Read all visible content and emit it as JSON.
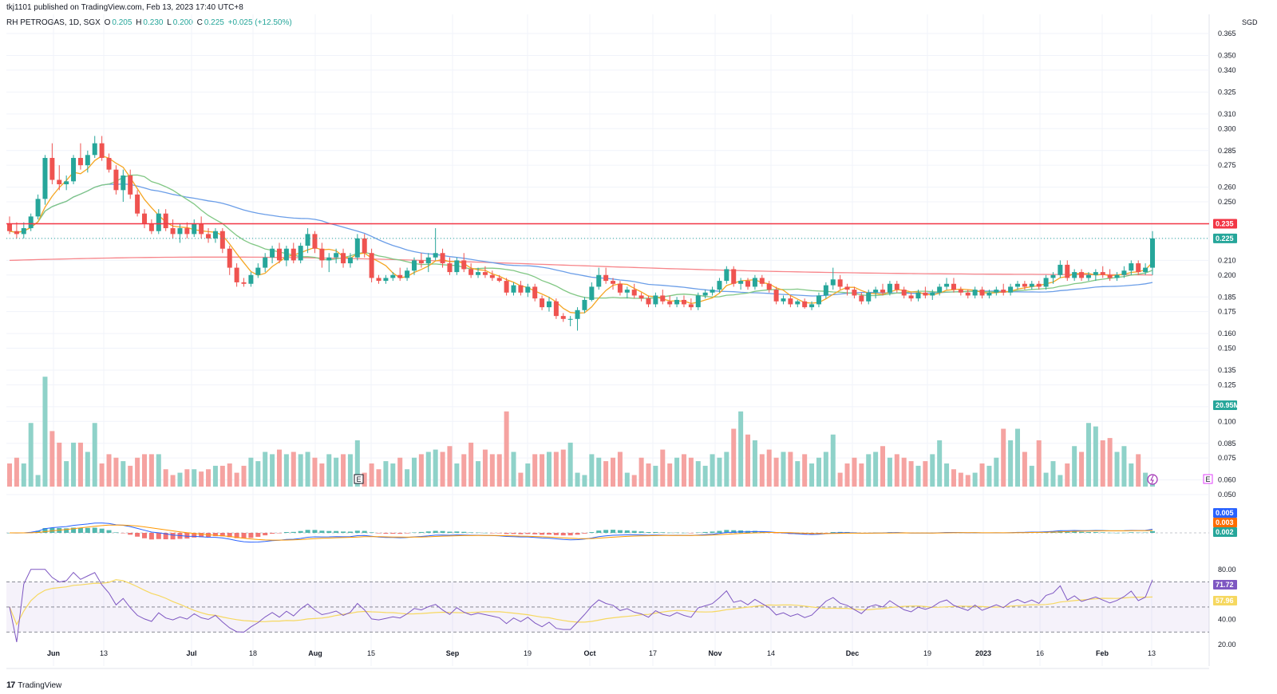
{
  "header": {
    "publish_line": "tkj1101 published on TradingView.com, Feb 13, 2023 17:40 UTC+8",
    "symbol": "RH PETROGAS, 1D, SGX",
    "ohlc": {
      "o_label": "O",
      "o": "0.205",
      "h_label": "H",
      "h": "0.230",
      "l_label": "L",
      "l": "0.200",
      "c_label": "C",
      "c": "0.225",
      "change": "+0.025 (+12.50%)"
    },
    "currency": "SGD"
  },
  "price_axis": {
    "ticks": [
      "0.365",
      "0.350",
      "0.340",
      "0.325",
      "0.310",
      "0.300",
      "0.285",
      "0.275",
      "0.260",
      "0.250",
      "0.235",
      "0.225",
      "0.210",
      "0.200",
      "0.185",
      "0.175",
      "0.160",
      "0.150",
      "0.135",
      "0.125",
      "0.110",
      "0.100",
      "0.085",
      "0.075",
      "0.060",
      "0.050"
    ],
    "ylim": [
      0.05,
      0.365
    ]
  },
  "x_axis": {
    "labels": [
      "Jun",
      "13",
      "Jul",
      "18",
      "Aug",
      "15",
      "Sep",
      "19",
      "Oct",
      "17",
      "Nov",
      "14",
      "Dec",
      "19",
      "2023",
      "16",
      "Feb",
      "13"
    ],
    "bold": [
      "Jun",
      "Jul",
      "Aug",
      "Sep",
      "Oct",
      "Nov",
      "Dec",
      "2023",
      "Feb"
    ]
  },
  "badges": {
    "resistance": "0.235",
    "last_price": "0.225",
    "volume": "20.95M",
    "macd_1": "0.005",
    "macd_2": "0.003",
    "macd_3": "0.002",
    "rsi": "71.72",
    "rsi_ma": "57.96"
  },
  "rsi_axis": {
    "ticks": [
      "80.00",
      "40.00",
      "20.00"
    ]
  },
  "markers": {
    "earnings_label": "E"
  },
  "footer": {
    "brand": "TradingView"
  },
  "colors": {
    "up": "#26a69a",
    "down": "#ef5350",
    "vol_up": "#8fd2c9",
    "vol_down": "#f5a3a1",
    "ma_fast": "#f5a623",
    "ma_mid": "#81c784",
    "ma_slow": "#6b9ee8",
    "ma_long": "#f7858a",
    "resistance": "#f23645",
    "rsi_line": "#7e57c2",
    "rsi_ma": "#f6d860",
    "macd_line": "#2962ff",
    "macd_signal": "#ff9800"
  },
  "chart_data": {
    "type": "candlestick",
    "series_order": "ohlc",
    "ohlc": [
      [
        0.235,
        0.24,
        0.228,
        0.23
      ],
      [
        0.23,
        0.236,
        0.225,
        0.228
      ],
      [
        0.228,
        0.236,
        0.225,
        0.232
      ],
      [
        0.232,
        0.242,
        0.23,
        0.24
      ],
      [
        0.24,
        0.255,
        0.238,
        0.252
      ],
      [
        0.252,
        0.282,
        0.248,
        0.28
      ],
      [
        0.28,
        0.29,
        0.262,
        0.265
      ],
      [
        0.265,
        0.275,
        0.258,
        0.262
      ],
      [
        0.262,
        0.268,
        0.258,
        0.264
      ],
      [
        0.264,
        0.282,
        0.262,
        0.28
      ],
      [
        0.28,
        0.29,
        0.272,
        0.275
      ],
      [
        0.275,
        0.285,
        0.27,
        0.282
      ],
      [
        0.282,
        0.295,
        0.28,
        0.29
      ],
      [
        0.29,
        0.295,
        0.278,
        0.28
      ],
      [
        0.28,
        0.283,
        0.27,
        0.272
      ],
      [
        0.272,
        0.275,
        0.255,
        0.258
      ],
      [
        0.258,
        0.272,
        0.25,
        0.268
      ],
      [
        0.268,
        0.272,
        0.252,
        0.255
      ],
      [
        0.255,
        0.258,
        0.24,
        0.242
      ],
      [
        0.242,
        0.245,
        0.232,
        0.235
      ],
      [
        0.235,
        0.238,
        0.228,
        0.23
      ],
      [
        0.23,
        0.245,
        0.228,
        0.242
      ],
      [
        0.242,
        0.245,
        0.23,
        0.232
      ],
      [
        0.232,
        0.238,
        0.225,
        0.228
      ],
      [
        0.228,
        0.235,
        0.222,
        0.232
      ],
      [
        0.232,
        0.236,
        0.225,
        0.228
      ],
      [
        0.228,
        0.238,
        0.226,
        0.235
      ],
      [
        0.235,
        0.24,
        0.225,
        0.228
      ],
      [
        0.228,
        0.232,
        0.222,
        0.225
      ],
      [
        0.225,
        0.232,
        0.222,
        0.23
      ],
      [
        0.23,
        0.232,
        0.215,
        0.218
      ],
      [
        0.218,
        0.22,
        0.2,
        0.205
      ],
      [
        0.205,
        0.208,
        0.192,
        0.195
      ],
      [
        0.195,
        0.198,
        0.192,
        0.194
      ],
      [
        0.194,
        0.202,
        0.192,
        0.2
      ],
      [
        0.2,
        0.208,
        0.198,
        0.205
      ],
      [
        0.205,
        0.215,
        0.202,
        0.212
      ],
      [
        0.212,
        0.22,
        0.208,
        0.218
      ],
      [
        0.218,
        0.222,
        0.208,
        0.21
      ],
      [
        0.21,
        0.22,
        0.206,
        0.218
      ],
      [
        0.218,
        0.222,
        0.208,
        0.21
      ],
      [
        0.21,
        0.222,
        0.208,
        0.22
      ],
      [
        0.22,
        0.232,
        0.215,
        0.228
      ],
      [
        0.228,
        0.23,
        0.215,
        0.218
      ],
      [
        0.218,
        0.222,
        0.205,
        0.21
      ],
      [
        0.21,
        0.215,
        0.202,
        0.212
      ],
      [
        0.212,
        0.218,
        0.208,
        0.215
      ],
      [
        0.215,
        0.218,
        0.205,
        0.208
      ],
      [
        0.208,
        0.215,
        0.205,
        0.212
      ],
      [
        0.212,
        0.228,
        0.21,
        0.225
      ],
      [
        0.225,
        0.228,
        0.212,
        0.215
      ],
      [
        0.215,
        0.218,
        0.195,
        0.198
      ],
      [
        0.198,
        0.2,
        0.194,
        0.196
      ],
      [
        0.196,
        0.2,
        0.194,
        0.198
      ],
      [
        0.198,
        0.202,
        0.196,
        0.2
      ],
      [
        0.2,
        0.205,
        0.196,
        0.198
      ],
      [
        0.198,
        0.205,
        0.196,
        0.203
      ],
      [
        0.203,
        0.212,
        0.2,
        0.21
      ],
      [
        0.21,
        0.215,
        0.205,
        0.208
      ],
      [
        0.208,
        0.215,
        0.202,
        0.212
      ],
      [
        0.212,
        0.232,
        0.21,
        0.215
      ],
      [
        0.215,
        0.218,
        0.205,
        0.208
      ],
      [
        0.208,
        0.212,
        0.2,
        0.202
      ],
      [
        0.202,
        0.212,
        0.2,
        0.21
      ],
      [
        0.21,
        0.215,
        0.202,
        0.204
      ],
      [
        0.204,
        0.208,
        0.198,
        0.2
      ],
      [
        0.2,
        0.205,
        0.198,
        0.202
      ],
      [
        0.202,
        0.206,
        0.198,
        0.2
      ],
      [
        0.2,
        0.203,
        0.196,
        0.198
      ],
      [
        0.198,
        0.2,
        0.195,
        0.196
      ],
      [
        0.196,
        0.198,
        0.186,
        0.188
      ],
      [
        0.188,
        0.195,
        0.186,
        0.193
      ],
      [
        0.193,
        0.196,
        0.186,
        0.188
      ],
      [
        0.188,
        0.194,
        0.185,
        0.192
      ],
      [
        0.192,
        0.194,
        0.182,
        0.184
      ],
      [
        0.184,
        0.186,
        0.176,
        0.178
      ],
      [
        0.178,
        0.185,
        0.175,
        0.182
      ],
      [
        0.182,
        0.184,
        0.17,
        0.172
      ],
      [
        0.172,
        0.174,
        0.168,
        0.17
      ],
      [
        0.17,
        0.172,
        0.165,
        0.17
      ],
      [
        0.17,
        0.178,
        0.162,
        0.176
      ],
      [
        0.176,
        0.185,
        0.174,
        0.183
      ],
      [
        0.183,
        0.195,
        0.182,
        0.192
      ],
      [
        0.192,
        0.205,
        0.19,
        0.2
      ],
      [
        0.2,
        0.205,
        0.194,
        0.196
      ],
      [
        0.196,
        0.198,
        0.19,
        0.194
      ],
      [
        0.194,
        0.196,
        0.186,
        0.188
      ],
      [
        0.188,
        0.192,
        0.184,
        0.19
      ],
      [
        0.19,
        0.194,
        0.184,
        0.186
      ],
      [
        0.186,
        0.188,
        0.182,
        0.184
      ],
      [
        0.184,
        0.186,
        0.178,
        0.18
      ],
      [
        0.18,
        0.188,
        0.178,
        0.186
      ],
      [
        0.186,
        0.19,
        0.18,
        0.182
      ],
      [
        0.182,
        0.186,
        0.178,
        0.18
      ],
      [
        0.18,
        0.185,
        0.178,
        0.183
      ],
      [
        0.183,
        0.186,
        0.178,
        0.18
      ],
      [
        0.18,
        0.184,
        0.176,
        0.178
      ],
      [
        0.178,
        0.188,
        0.176,
        0.186
      ],
      [
        0.186,
        0.19,
        0.184,
        0.188
      ],
      [
        0.188,
        0.192,
        0.186,
        0.19
      ],
      [
        0.19,
        0.198,
        0.188,
        0.196
      ],
      [
        0.196,
        0.206,
        0.194,
        0.204
      ],
      [
        0.204,
        0.206,
        0.192,
        0.194
      ],
      [
        0.194,
        0.198,
        0.19,
        0.196
      ],
      [
        0.196,
        0.198,
        0.19,
        0.192
      ],
      [
        0.192,
        0.2,
        0.19,
        0.198
      ],
      [
        0.198,
        0.2,
        0.192,
        0.194
      ],
      [
        0.194,
        0.196,
        0.188,
        0.19
      ],
      [
        0.19,
        0.192,
        0.18,
        0.182
      ],
      [
        0.182,
        0.186,
        0.18,
        0.184
      ],
      [
        0.184,
        0.186,
        0.178,
        0.18
      ],
      [
        0.18,
        0.183,
        0.178,
        0.182
      ],
      [
        0.182,
        0.184,
        0.177,
        0.178
      ],
      [
        0.178,
        0.182,
        0.176,
        0.18
      ],
      [
        0.18,
        0.188,
        0.178,
        0.186
      ],
      [
        0.186,
        0.195,
        0.184,
        0.193
      ],
      [
        0.193,
        0.205,
        0.19,
        0.197
      ],
      [
        0.197,
        0.2,
        0.19,
        0.192
      ],
      [
        0.192,
        0.194,
        0.186,
        0.19
      ],
      [
        0.19,
        0.192,
        0.184,
        0.186
      ],
      [
        0.186,
        0.188,
        0.18,
        0.182
      ],
      [
        0.182,
        0.19,
        0.18,
        0.188
      ],
      [
        0.188,
        0.192,
        0.184,
        0.19
      ],
      [
        0.19,
        0.194,
        0.186,
        0.188
      ],
      [
        0.188,
        0.196,
        0.186,
        0.194
      ],
      [
        0.194,
        0.196,
        0.188,
        0.19
      ],
      [
        0.19,
        0.192,
        0.184,
        0.186
      ],
      [
        0.186,
        0.188,
        0.182,
        0.184
      ],
      [
        0.184,
        0.19,
        0.182,
        0.188
      ],
      [
        0.188,
        0.192,
        0.184,
        0.186
      ],
      [
        0.186,
        0.19,
        0.183,
        0.188
      ],
      [
        0.188,
        0.194,
        0.186,
        0.192
      ],
      [
        0.192,
        0.198,
        0.19,
        0.194
      ],
      [
        0.194,
        0.198,
        0.188,
        0.19
      ],
      [
        0.19,
        0.192,
        0.186,
        0.188
      ],
      [
        0.188,
        0.19,
        0.184,
        0.186
      ],
      [
        0.186,
        0.192,
        0.184,
        0.19
      ],
      [
        0.19,
        0.192,
        0.184,
        0.186
      ],
      [
        0.186,
        0.19,
        0.184,
        0.188
      ],
      [
        0.188,
        0.192,
        0.186,
        0.19
      ],
      [
        0.19,
        0.194,
        0.186,
        0.188
      ],
      [
        0.188,
        0.194,
        0.186,
        0.192
      ],
      [
        0.192,
        0.196,
        0.19,
        0.194
      ],
      [
        0.194,
        0.196,
        0.19,
        0.192
      ],
      [
        0.192,
        0.196,
        0.19,
        0.194
      ],
      [
        0.194,
        0.196,
        0.19,
        0.192
      ],
      [
        0.192,
        0.2,
        0.19,
        0.198
      ],
      [
        0.198,
        0.202,
        0.194,
        0.2
      ],
      [
        0.2,
        0.21,
        0.198,
        0.207
      ],
      [
        0.207,
        0.21,
        0.196,
        0.198
      ],
      [
        0.198,
        0.204,
        0.196,
        0.202
      ],
      [
        0.202,
        0.204,
        0.196,
        0.198
      ],
      [
        0.198,
        0.202,
        0.196,
        0.2
      ],
      [
        0.2,
        0.204,
        0.196,
        0.202
      ],
      [
        0.202,
        0.206,
        0.198,
        0.2
      ],
      [
        0.2,
        0.204,
        0.196,
        0.198
      ],
      [
        0.198,
        0.202,
        0.196,
        0.2
      ],
      [
        0.2,
        0.206,
        0.198,
        0.203
      ],
      [
        0.203,
        0.21,
        0.2,
        0.208
      ],
      [
        0.208,
        0.21,
        0.2,
        0.202
      ],
      [
        0.202,
        0.208,
        0.2,
        0.205
      ],
      [
        0.205,
        0.23,
        0.2,
        0.225
      ]
    ],
    "volume_relative": [
      0.2,
      0.25,
      0.2,
      0.55,
      0.1,
      0.95,
      0.48,
      0.38,
      0.22,
      0.38,
      0.38,
      0.3,
      0.55,
      0.2,
      0.28,
      0.25,
      0.22,
      0.18,
      0.25,
      0.28,
      0.28,
      0.28,
      0.15,
      0.1,
      0.12,
      0.15,
      0.15,
      0.13,
      0.15,
      0.18,
      0.18,
      0.2,
      0.12,
      0.18,
      0.25,
      0.22,
      0.3,
      0.28,
      0.32,
      0.28,
      0.3,
      0.28,
      0.3,
      0.25,
      0.2,
      0.28,
      0.25,
      0.28,
      0.28,
      0.4,
      0.12,
      0.2,
      0.15,
      0.22,
      0.2,
      0.25,
      0.15,
      0.25,
      0.28,
      0.3,
      0.32,
      0.3,
      0.35,
      0.2,
      0.28,
      0.38,
      0.22,
      0.32,
      0.28,
      0.28,
      0.65,
      0.3,
      0.12,
      0.2,
      0.28,
      0.28,
      0.3,
      0.3,
      0.32,
      0.38,
      0.12,
      0.1,
      0.28,
      0.25,
      0.22,
      0.25,
      0.3,
      0.12,
      0.1,
      0.25,
      0.2,
      0.18,
      0.32,
      0.2,
      0.25,
      0.28,
      0.25,
      0.22,
      0.18,
      0.28,
      0.25,
      0.3,
      0.5,
      0.65,
      0.45,
      0.4,
      0.28,
      0.32,
      0.25,
      0.3,
      0.3,
      0.22,
      0.28,
      0.2,
      0.25,
      0.3,
      0.45,
      0.12,
      0.2,
      0.25,
      0.2,
      0.28,
      0.3,
      0.35,
      0.25,
      0.28,
      0.25,
      0.22,
      0.18,
      0.22,
      0.28,
      0.4,
      0.2,
      0.15,
      0.12,
      0.1,
      0.12,
      0.2,
      0.18,
      0.25,
      0.5,
      0.4,
      0.5,
      0.3,
      0.18,
      0.4,
      0.12,
      0.22,
      0.1,
      0.2,
      0.35,
      0.3,
      0.55,
      0.52,
      0.4,
      0.42,
      0.3,
      0.35,
      0.2,
      0.28,
      0.12,
      0.08,
      0.12,
      0.15,
      0.2,
      0.28,
      0.25,
      0.22,
      0.3,
      0.28,
      0.35,
      0.08,
      0.42,
      0.9
    ],
    "rsi_last": 71.72,
    "rsi_ma_last": 57.96
  }
}
